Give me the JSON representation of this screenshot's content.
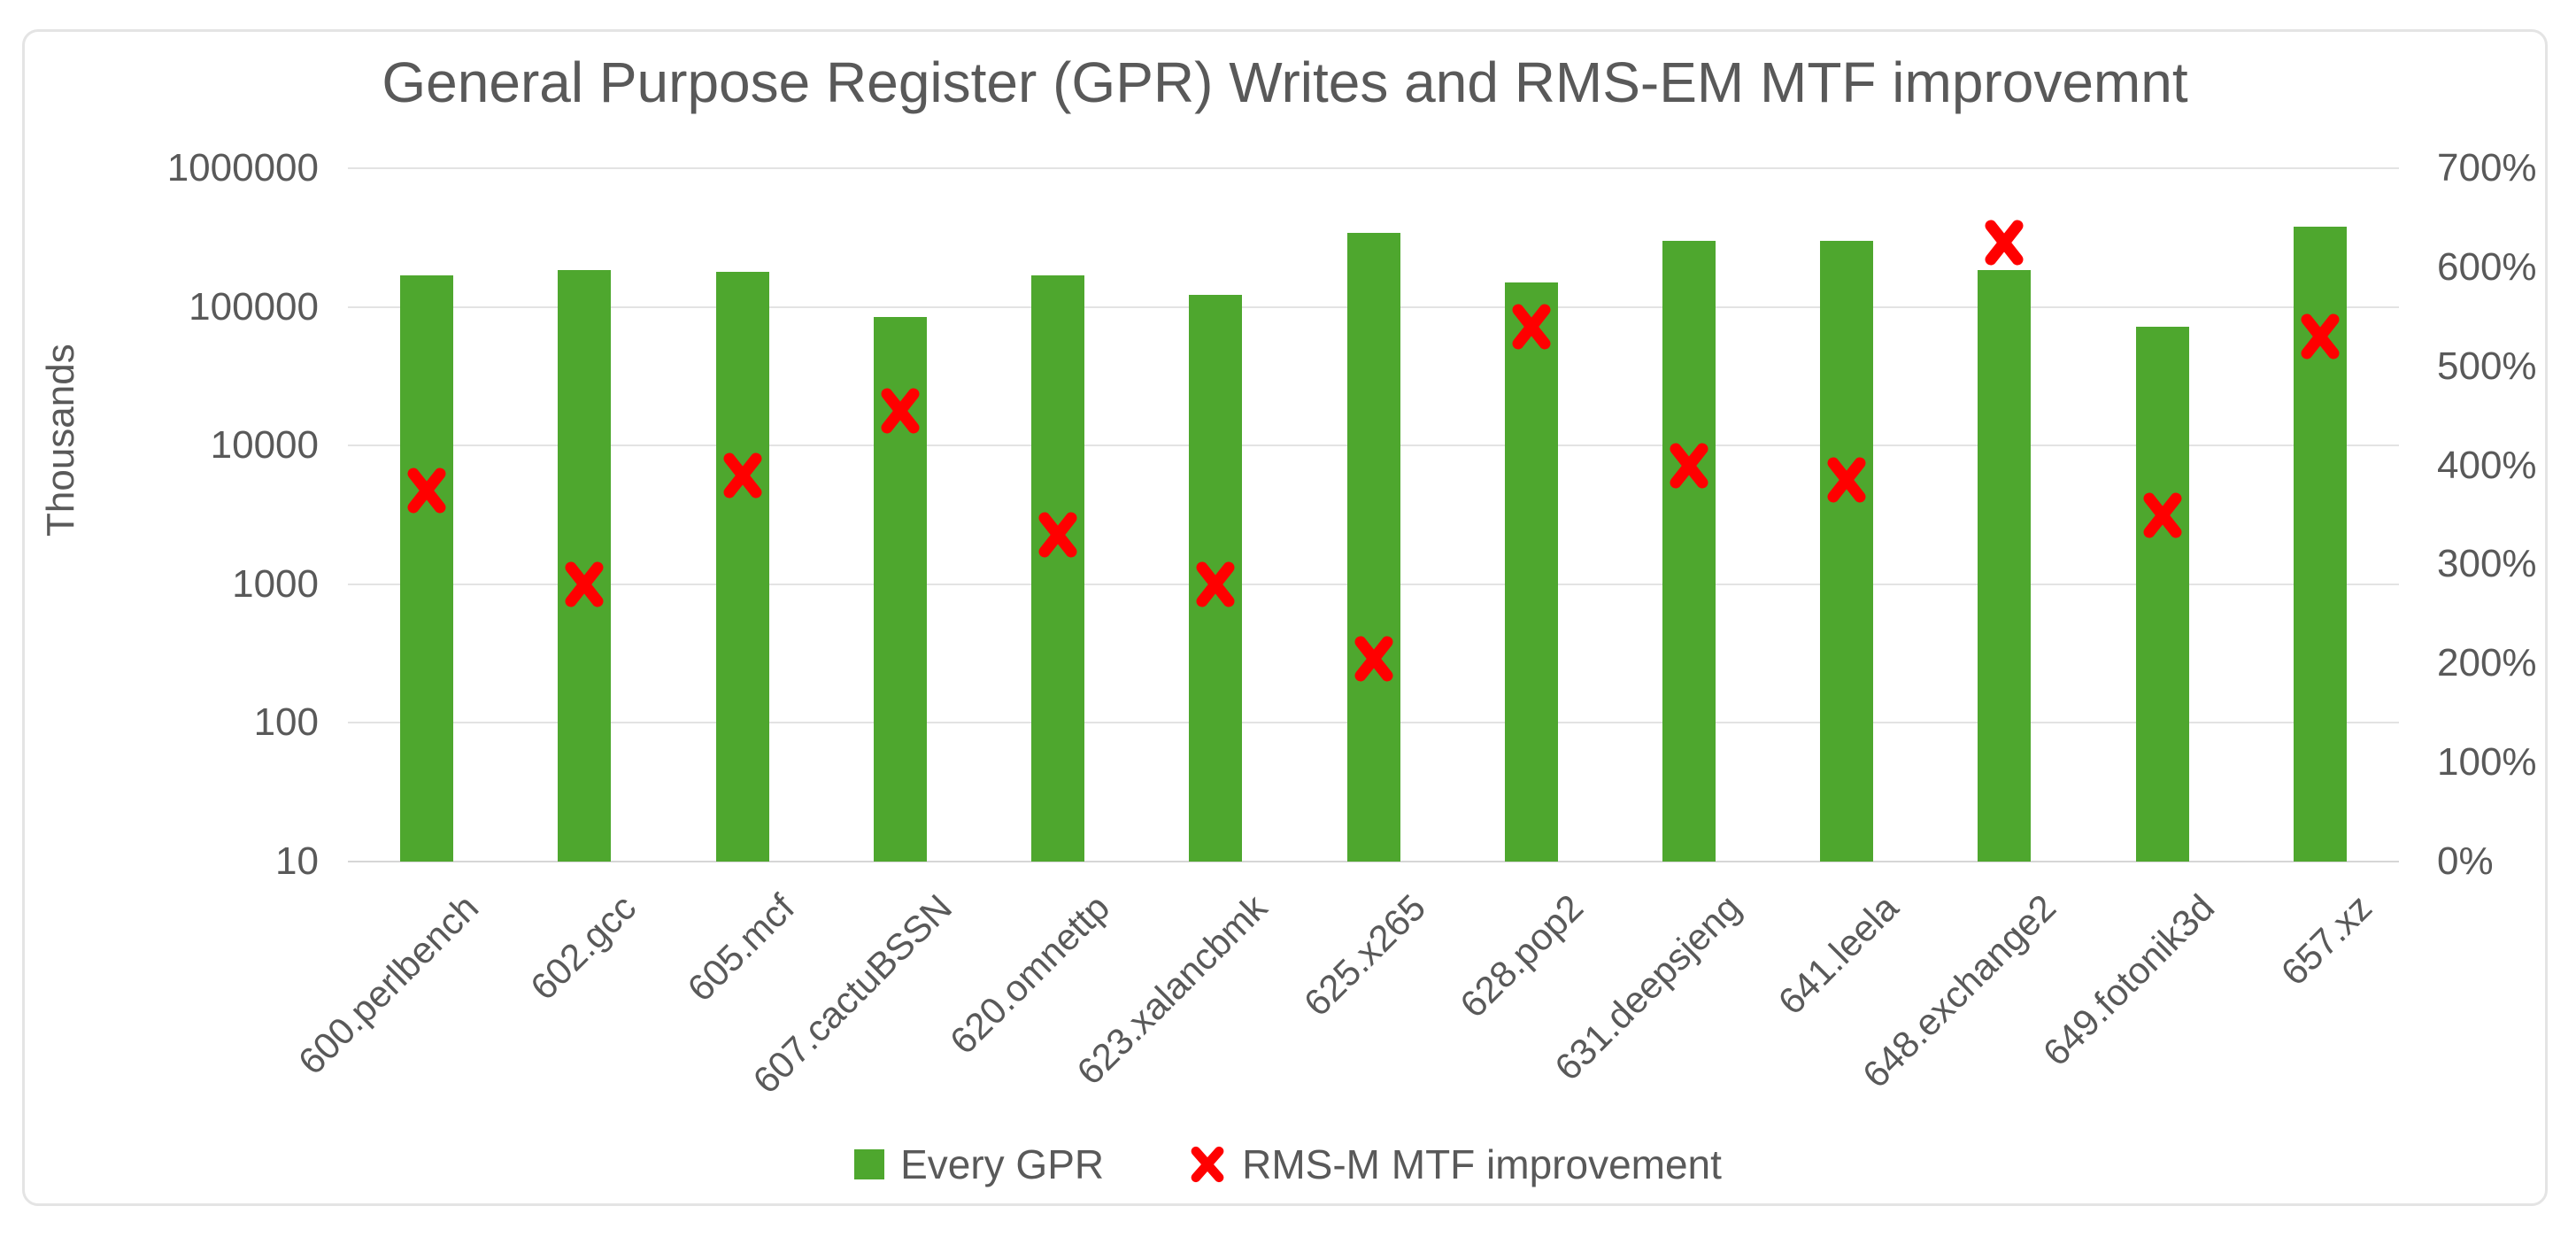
{
  "title": "General Purpose Register (GPR) Writes and RMS-EM MTF improvemnt",
  "left_axis": {
    "label": "Thousands",
    "ticks": [
      "1000000",
      "100000",
      "10000",
      "1000",
      "100",
      "10"
    ],
    "scale": "log"
  },
  "right_axis": {
    "ticks": [
      "700%",
      "600%",
      "500%",
      "400%",
      "300%",
      "200%",
      "100%",
      "0%"
    ]
  },
  "legend": {
    "items": [
      {
        "label": "Every GPR",
        "swatch": "green-square"
      },
      {
        "label": "RMS-M MTF improvement",
        "swatch": "red-x"
      }
    ]
  },
  "colors": {
    "bar_green": "#4ea72e",
    "marker_red": "#ff0000",
    "text_gray": "#595959",
    "gridline": "#e3e3e3"
  },
  "chart_data": {
    "type": "bar",
    "subtype": "combo-bar-with-scatter-x-markers",
    "title": "General Purpose Register (GPR) Writes and RMS-EM MTF improvemnt",
    "categories": [
      "600.perlbench",
      "602.gcc",
      "605.mcf",
      "607.cactuBSSN",
      "620.omnettp",
      "623.xalancbmk",
      "625.x265",
      "628.pop2",
      "631.deepsjeng",
      "641.leela",
      "648.exchange2",
      "649.fotonik3d",
      "657.xz"
    ],
    "series": [
      {
        "name": "Every GPR",
        "type": "bar",
        "axis": "left",
        "unit": "Thousands",
        "values": [
          170000,
          185000,
          180000,
          85000,
          170000,
          122000,
          340000,
          150000,
          300000,
          300000,
          185000,
          72000,
          380000
        ]
      },
      {
        "name": "RMS-M MTF improvement",
        "type": "scatter",
        "marker": "x",
        "axis": "right",
        "unit": "percent",
        "values": [
          375,
          280,
          390,
          455,
          330,
          280,
          205,
          540,
          400,
          385,
          625,
          350,
          530
        ]
      }
    ],
    "xlabel": "",
    "ylabel_left": "Thousands",
    "ylabel_right": "",
    "left_ylim": [
      10,
      1000000
    ],
    "left_scale": "log",
    "right_ylim": [
      0,
      700
    ],
    "grid": true,
    "legend_position": "bottom"
  }
}
